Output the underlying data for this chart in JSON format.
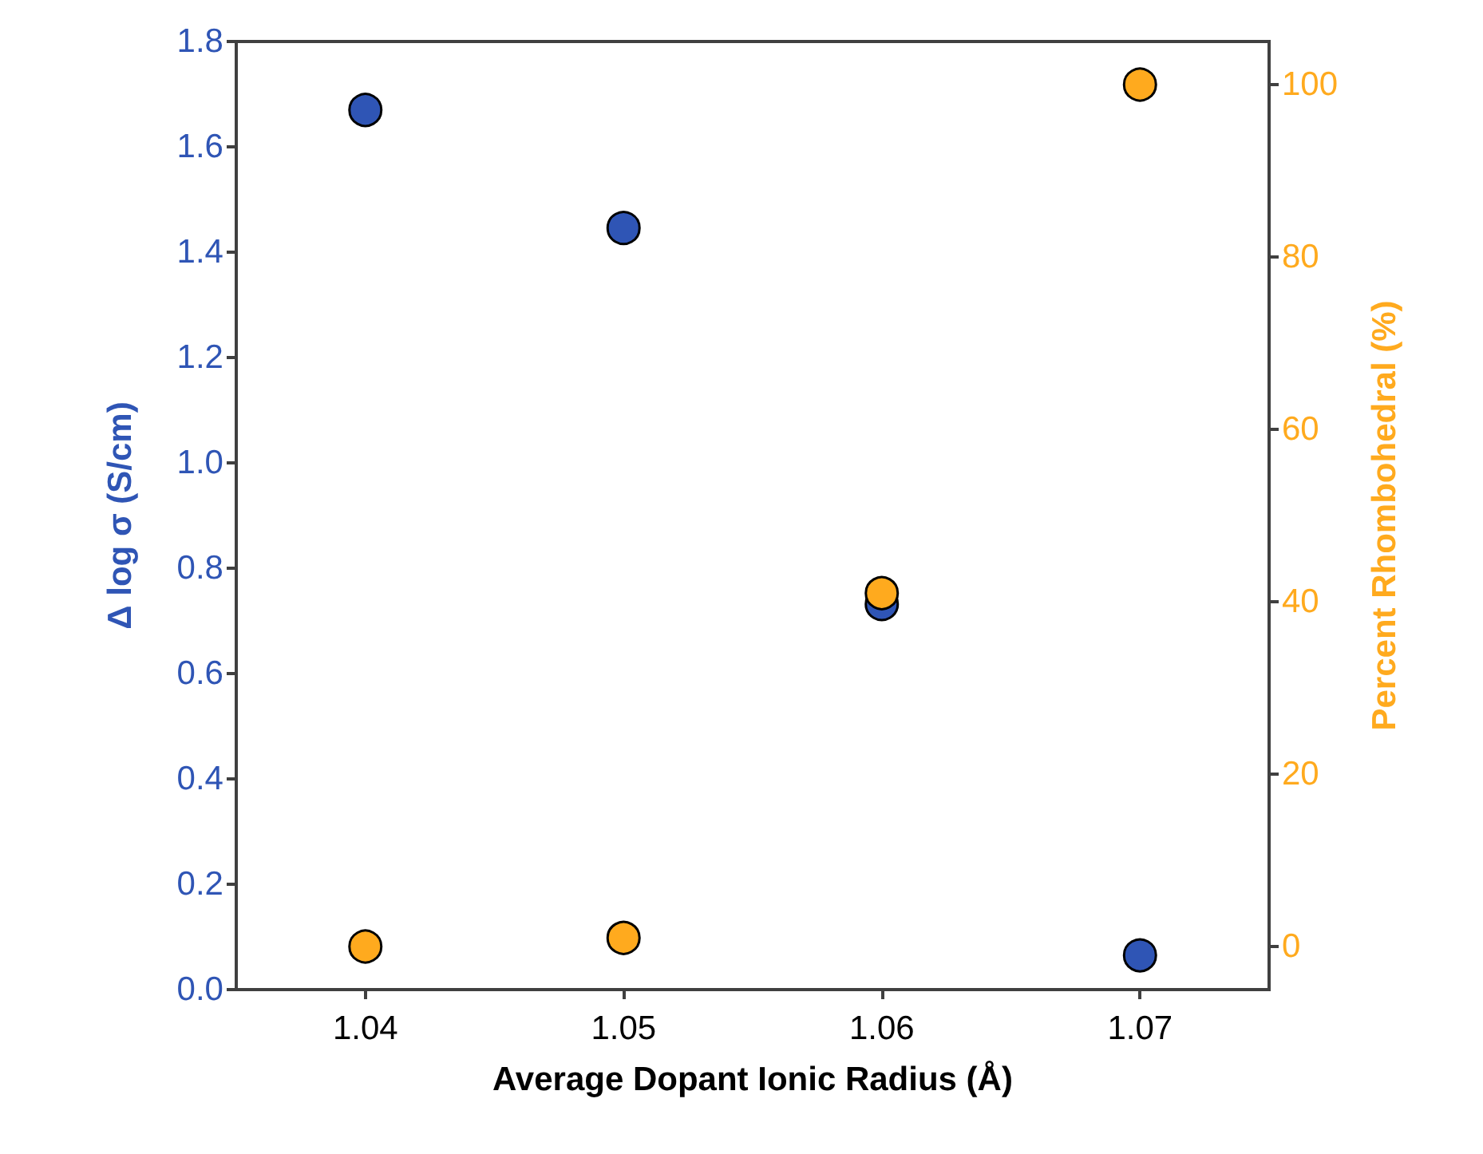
{
  "chart_data": {
    "type": "scatter",
    "xlabel": "Average Dopant Ionic Radius (Å)",
    "ylabel": "Δ log σ (S/cm)",
    "y2label": "Percent Rhombohedral (%)",
    "x": [
      1.04,
      1.05,
      1.06,
      1.07
    ],
    "series": [
      {
        "color": "#2f55b5",
        "values": [
          1.67,
          1.446,
          0.732,
          0.065
        ]
      },
      {
        "color": "#ffaa1e",
        "values": [
          0,
          1,
          41,
          100
        ],
        "axis": "y2"
      }
    ],
    "xlim": [
      1.035,
      1.075
    ],
    "xticks": [
      1.04,
      1.05,
      1.06,
      1.07
    ],
    "ylim": [
      0,
      1.8
    ],
    "yticks": [
      {
        "value": 0,
        "label": "0.0"
      },
      0.2,
      0.4,
      0.6,
      0.8,
      {
        "value": 1,
        "label": "1.0"
      },
      1.2,
      1.4,
      1.6,
      1.8
    ],
    "y2lim": [
      -5,
      105
    ],
    "y2ticks": [
      0,
      20,
      40,
      60,
      80,
      100
    ],
    "grid": false,
    "marker": "circle"
  }
}
